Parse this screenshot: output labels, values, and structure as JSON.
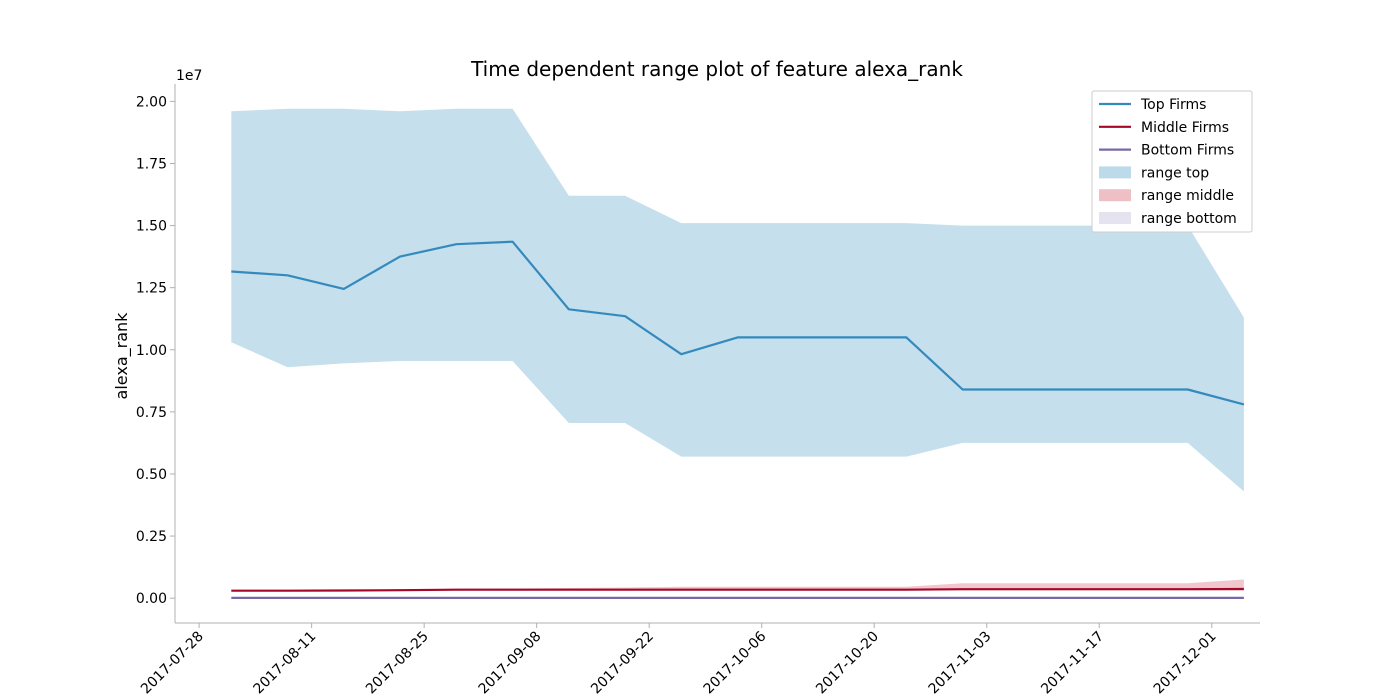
{
  "chart_data": {
    "type": "area",
    "title": "Time dependent range plot of feature alexa_rank",
    "xlabel": "",
    "ylabel": "alexa_rank",
    "y_offset_label": "1e7",
    "y_scale": 10000000,
    "ylim": [
      -0.1,
      2.07
    ],
    "xlim": [
      "2017-07-25",
      "2017-12-07"
    ],
    "grid": false,
    "legend_position": "top-right",
    "x_ticks": [
      "2017-07-28",
      "2017-08-11",
      "2017-08-25",
      "2017-09-08",
      "2017-09-22",
      "2017-10-06",
      "2017-10-20",
      "2017-11-03",
      "2017-11-17",
      "2017-12-01"
    ],
    "y_ticks": [
      "0.00",
      "0.25",
      "0.50",
      "0.75",
      "1.00",
      "1.25",
      "1.50",
      "1.75",
      "2.00"
    ],
    "x": [
      "2017-08-01",
      "2017-08-08",
      "2017-08-15",
      "2017-08-22",
      "2017-08-29",
      "2017-09-05",
      "2017-09-12",
      "2017-09-19",
      "2017-09-26",
      "2017-10-03",
      "2017-10-10",
      "2017-10-17",
      "2017-10-24",
      "2017-10-31",
      "2017-11-07",
      "2017-11-14",
      "2017-11-21",
      "2017-11-28",
      "2017-12-05"
    ],
    "series": [
      {
        "name": "Top Firms",
        "color": "#348abd",
        "values": [
          1.315,
          1.3,
          1.245,
          1.375,
          1.425,
          1.435,
          1.163,
          1.135,
          0.982,
          1.05,
          1.05,
          1.05,
          1.05,
          0.84,
          0.84,
          0.84,
          0.84,
          0.84,
          0.78
        ]
      },
      {
        "name": "Middle Firms",
        "color": "#a60628",
        "values": [
          0.03,
          0.03,
          0.031,
          0.032,
          0.034,
          0.034,
          0.034,
          0.034,
          0.034,
          0.034,
          0.034,
          0.034,
          0.034,
          0.036,
          0.036,
          0.036,
          0.036,
          0.036,
          0.037
        ]
      },
      {
        "name": "Bottom Firms",
        "color": "#7a68a6",
        "values": [
          0.001,
          0.001,
          0.001,
          0.001,
          0.001,
          0.001,
          0.001,
          0.001,
          0.001,
          0.001,
          0.001,
          0.001,
          0.001,
          0.001,
          0.001,
          0.001,
          0.001,
          0.001,
          0.001
        ]
      }
    ],
    "ranges": [
      {
        "name": "range top",
        "color": "#a6cee3",
        "upper": [
          1.96,
          1.97,
          1.97,
          1.96,
          1.97,
          1.97,
          1.62,
          1.62,
          1.51,
          1.51,
          1.51,
          1.51,
          1.51,
          1.5,
          1.5,
          1.5,
          1.5,
          1.5,
          1.13
        ],
        "lower": [
          1.03,
          0.93,
          0.945,
          0.955,
          0.955,
          0.955,
          0.705,
          0.705,
          0.57,
          0.57,
          0.57,
          0.57,
          0.57,
          0.625,
          0.625,
          0.625,
          0.625,
          0.625,
          0.43
        ]
      },
      {
        "name": "range middle",
        "color": "#e8a9b1",
        "upper": [
          0.032,
          0.032,
          0.033,
          0.034,
          0.038,
          0.039,
          0.041,
          0.043,
          0.046,
          0.046,
          0.046,
          0.046,
          0.046,
          0.06,
          0.06,
          0.06,
          0.06,
          0.06,
          0.075
        ],
        "lower": [
          0.028,
          0.028,
          0.029,
          0.03,
          0.031,
          0.031,
          0.031,
          0.031,
          0.031,
          0.031,
          0.031,
          0.031,
          0.031,
          0.031,
          0.031,
          0.031,
          0.031,
          0.031,
          0.031
        ]
      },
      {
        "name": "range bottom",
        "color": "#dcd9ea",
        "upper": [
          0.002,
          0.002,
          0.002,
          0.002,
          0.002,
          0.002,
          0.002,
          0.002,
          0.002,
          0.002,
          0.002,
          0.002,
          0.002,
          0.002,
          0.002,
          0.002,
          0.002,
          0.002,
          0.002
        ],
        "lower": [
          0.0,
          0.0,
          0.0,
          0.0,
          0.0,
          0.0,
          0.0,
          0.0,
          0.0,
          0.0,
          0.0,
          0.0,
          0.0,
          0.0,
          0.0,
          0.0,
          0.0,
          0.0,
          0.0
        ]
      }
    ],
    "legend": [
      {
        "label": "Top Firms",
        "kind": "line",
        "color": "#348abd"
      },
      {
        "label": "Middle Firms",
        "kind": "line",
        "color": "#a60628"
      },
      {
        "label": "Bottom Firms",
        "kind": "line",
        "color": "#7a68a6"
      },
      {
        "label": "range top",
        "kind": "patch",
        "color": "#a6cee3"
      },
      {
        "label": "range middle",
        "kind": "patch",
        "color": "#e8a9b1"
      },
      {
        "label": "range bottom",
        "kind": "patch",
        "color": "#dcd9ea"
      }
    ]
  }
}
